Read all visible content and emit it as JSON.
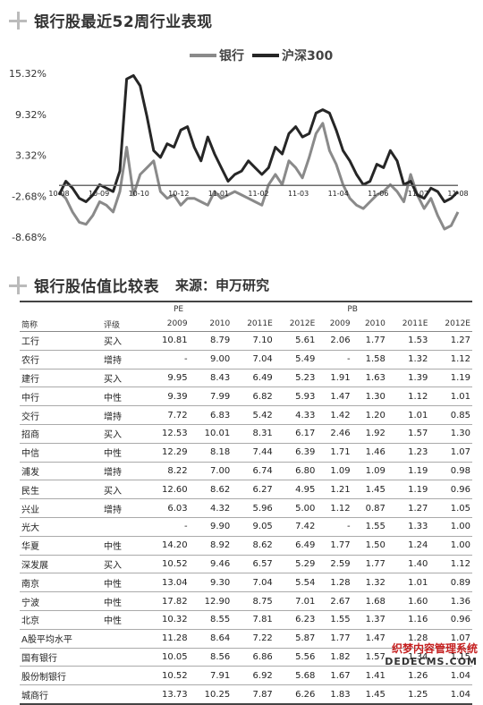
{
  "chart_title": "银行股最近52周行业表现",
  "table_title": "银行股估值比较表",
  "source": "来源：申万研究",
  "watermark": {
    "line1": "织梦内容管理系统",
    "line2": "DEDECMS.COM"
  },
  "chart_data": {
    "type": "line",
    "title": "银行股最近52周行业表现",
    "yticks": [
      "15.32%",
      "9.32%",
      "3.32%",
      "-2.68%",
      "-8.68%"
    ],
    "ylim": [
      -8.68,
      15.32
    ],
    "xticks": [
      "10-08",
      "10-09",
      "10-10",
      "10-12",
      "11-01",
      "11-02",
      "11-03",
      "11-04",
      "11-06",
      "11-07",
      "11-08"
    ],
    "series": [
      {
        "name": "银行",
        "color": "#8a8a8a",
        "values": [
          -2.0,
          -3.0,
          -5.0,
          -6.5,
          -6.8,
          -5.5,
          -3.5,
          -4.0,
          -5.0,
          -2.0,
          4.5,
          -2.5,
          0.5,
          1.5,
          2.5,
          -2.0,
          -3.0,
          -2.5,
          -4.0,
          -3.0,
          -3.0,
          -3.5,
          -4.0,
          -2.0,
          -3.0,
          -2.5,
          -2.0,
          -2.5,
          -3.0,
          -3.5,
          -4.0,
          -1.0,
          0.5,
          -1.0,
          2.5,
          1.5,
          0.0,
          3.0,
          6.5,
          8.0,
          4.0,
          2.0,
          -1.0,
          -3.0,
          -4.0,
          -4.5,
          -3.5,
          -2.5,
          -2.0,
          -1.0,
          -2.0,
          -3.5,
          0.5,
          -2.5,
          -4.5,
          -3.0,
          -5.5,
          -7.5,
          -7.0,
          -5.0
        ]
      },
      {
        "name": "沪深300",
        "color": "#262626",
        "values": [
          -2.5,
          -0.5,
          -1.5,
          -3.0,
          -3.5,
          -2.5,
          -1.0,
          -1.5,
          -2.0,
          1.0,
          14.5,
          15.0,
          13.5,
          9.0,
          4.0,
          3.0,
          5.0,
          4.5,
          7.0,
          7.5,
          4.5,
          2.5,
          6.0,
          3.5,
          1.5,
          -0.5,
          0.5,
          1.0,
          2.5,
          1.5,
          0.5,
          1.5,
          4.5,
          3.5,
          6.5,
          7.5,
          6.0,
          6.5,
          9.5,
          10.0,
          9.5,
          7.0,
          4.0,
          2.5,
          0.5,
          -1.0,
          -0.5,
          2.0,
          1.5,
          4.0,
          2.5,
          -1.0,
          -0.5,
          -2.5,
          -3.0,
          -1.5,
          -2.0,
          -3.5,
          -3.0,
          -2.0
        ]
      },
      {
        "name": "baseline",
        "color": "#6b6b6b",
        "values": [
          -1.1,
          -1.1,
          -1.1,
          -1.1,
          -1.1,
          -1.1,
          -1.1,
          -1.1,
          -1.1,
          -1.1,
          -1.1,
          -1.1,
          -1.1,
          -1.1,
          -1.1,
          -1.1,
          -1.1,
          -1.1,
          -1.1,
          -1.1,
          -1.1,
          -1.1,
          -1.1,
          -1.1,
          -1.1,
          -1.1,
          -1.1,
          -1.1,
          -1.1,
          -1.1,
          -1.1,
          -1.1,
          -1.1,
          -1.1,
          -1.1,
          -1.1,
          -1.1,
          -1.1,
          -1.1,
          -1.1,
          -1.1,
          -1.1,
          -1.1,
          -1.1,
          -1.1,
          -1.1,
          -1.1,
          -1.1,
          -1.1,
          -1.1,
          -1.1,
          -1.1,
          -1.1,
          -1.1,
          -1.1,
          -1.1,
          -1.1,
          -1.1,
          -1.1,
          -1.1
        ]
      }
    ],
    "legend": {
      "position": "top-right",
      "labels": [
        "银行",
        "沪深300"
      ]
    },
    "grid": false
  },
  "table": {
    "group_headers": {
      "pe": "PE",
      "pb": "PB"
    },
    "columns": [
      "简称",
      "评级",
      "2009",
      "2010",
      "2011E",
      "2012E",
      "2009",
      "2010",
      "2011E",
      "2012E"
    ],
    "rows": [
      [
        "工行",
        "买入",
        "10.81",
        "8.79",
        "7.10",
        "5.61",
        "2.06",
        "1.77",
        "1.53",
        "1.27"
      ],
      [
        "农行",
        "增持",
        "-",
        "9.00",
        "7.04",
        "5.49",
        "-",
        "1.58",
        "1.32",
        "1.12"
      ],
      [
        "建行",
        "买入",
        "9.95",
        "8.43",
        "6.49",
        "5.23",
        "1.91",
        "1.63",
        "1.39",
        "1.19"
      ],
      [
        "中行",
        "中性",
        "9.39",
        "7.99",
        "6.82",
        "5.93",
        "1.47",
        "1.30",
        "1.12",
        "1.01"
      ],
      [
        "交行",
        "增持",
        "7.72",
        "6.83",
        "5.42",
        "4.33",
        "1.42",
        "1.20",
        "1.01",
        "0.85"
      ],
      [
        "招商",
        "买入",
        "12.53",
        "10.01",
        "8.31",
        "6.17",
        "2.46",
        "1.92",
        "1.57",
        "1.30"
      ],
      [
        "中信",
        "中性",
        "12.29",
        "8.18",
        "7.44",
        "6.39",
        "1.71",
        "1.46",
        "1.23",
        "1.07"
      ],
      [
        "浦发",
        "增持",
        "8.22",
        "7.00",
        "6.74",
        "6.80",
        "1.09",
        "1.09",
        "1.19",
        "0.98"
      ],
      [
        "民生",
        "买入",
        "12.60",
        "8.62",
        "6.27",
        "4.95",
        "1.21",
        "1.45",
        "1.19",
        "0.96"
      ],
      [
        "兴业",
        "增持",
        "6.03",
        "4.32",
        "5.96",
        "5.00",
        "1.12",
        "0.87",
        "1.27",
        "1.05"
      ],
      [
        "光大",
        "",
        "-",
        "9.90",
        "9.05",
        "7.42",
        "-",
        "1.55",
        "1.33",
        "1.00"
      ],
      [
        "华夏",
        "中性",
        "14.20",
        "8.92",
        "8.62",
        "6.49",
        "1.77",
        "1.50",
        "1.24",
        "1.00"
      ],
      [
        "深发展",
        "买入",
        "10.52",
        "9.46",
        "6.57",
        "5.29",
        "2.59",
        "1.77",
        "1.40",
        "1.12"
      ],
      [
        "南京",
        "中性",
        "13.04",
        "9.30",
        "7.04",
        "5.54",
        "1.28",
        "1.32",
        "1.01",
        "0.89"
      ],
      [
        "宁波",
        "中性",
        "17.82",
        "12.90",
        "8.75",
        "7.01",
        "2.67",
        "1.68",
        "1.60",
        "1.36"
      ],
      [
        "北京",
        "中性",
        "10.32",
        "8.55",
        "7.81",
        "6.23",
        "1.55",
        "1.37",
        "1.16",
        "0.96"
      ],
      [
        "A股平均水平",
        "",
        "11.28",
        "8.64",
        "7.22",
        "5.87",
        "1.77",
        "1.47",
        "1.28",
        "1.07"
      ],
      [
        "国有银行",
        "",
        "10.05",
        "8.56",
        "6.86",
        "5.56",
        "1.82",
        "1.57",
        "1.34",
        "1.15"
      ],
      [
        "股份制银行",
        "",
        "10.52",
        "7.91",
        "6.92",
        "5.68",
        "1.67",
        "1.41",
        "1.26",
        "1.04"
      ],
      [
        "城商行",
        "",
        "13.73",
        "10.25",
        "7.87",
        "6.26",
        "1.83",
        "1.45",
        "1.25",
        "1.04"
      ]
    ]
  }
}
